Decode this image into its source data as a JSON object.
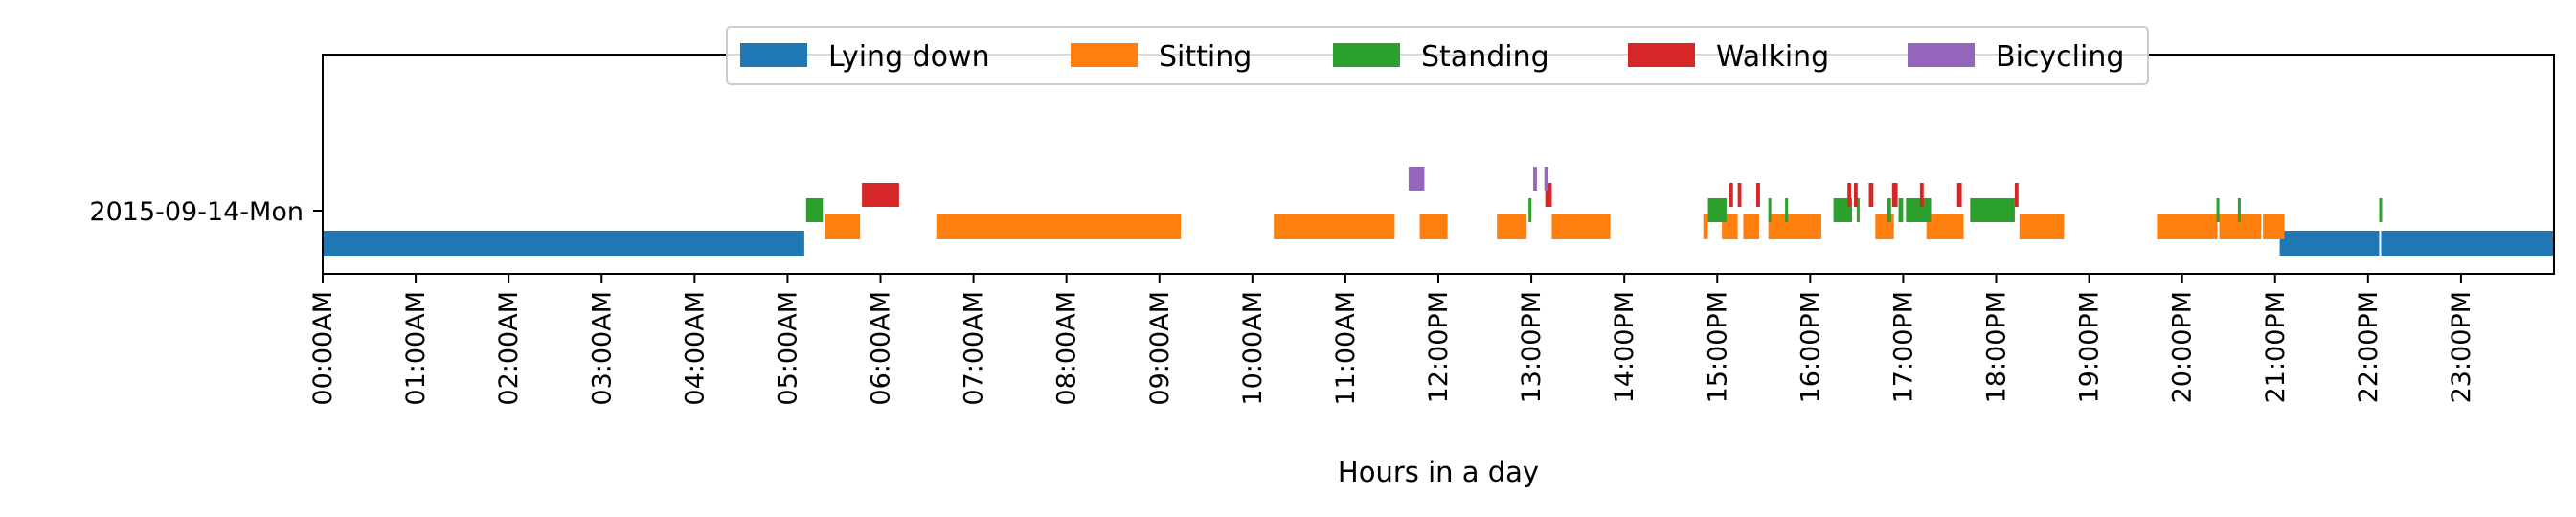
{
  "chart_data": {
    "type": "timeline",
    "title": "",
    "xlabel": "Hours in a day",
    "ylabel": "",
    "xlim": [
      0,
      24
    ],
    "grid": false,
    "legend_placement": "top-center",
    "rows": [
      "2015-09-14-Mon"
    ],
    "x_tick_labels": [
      "00:00AM",
      "01:00AM",
      "02:00AM",
      "03:00AM",
      "04:00AM",
      "05:00AM",
      "06:00AM",
      "07:00AM",
      "08:00AM",
      "09:00AM",
      "10:00AM",
      "11:00AM",
      "12:00PM",
      "13:00PM",
      "14:00PM",
      "15:00PM",
      "16:00PM",
      "17:00PM",
      "18:00PM",
      "19:00PM",
      "20:00PM",
      "21:00PM",
      "22:00PM",
      "23:00PM"
    ],
    "series": [
      {
        "name": "Lying down",
        "color": "#1f77b4",
        "intervals": [
          [
            0.0,
            5.18
          ],
          [
            21.05,
            22.12
          ],
          [
            22.14,
            24.0
          ]
        ]
      },
      {
        "name": "Sitting",
        "color": "#ff7f0e",
        "intervals": [
          [
            5.4,
            5.78
          ],
          [
            6.6,
            9.23
          ],
          [
            10.23,
            11.53
          ],
          [
            11.8,
            12.1
          ],
          [
            12.63,
            12.95
          ],
          [
            13.22,
            13.85
          ],
          [
            14.85,
            14.9
          ],
          [
            15.05,
            15.22
          ],
          [
            15.28,
            15.45
          ],
          [
            15.55,
            16.12
          ],
          [
            16.7,
            16.9
          ],
          [
            17.25,
            17.65
          ],
          [
            18.25,
            18.73
          ],
          [
            19.73,
            20.38
          ],
          [
            20.4,
            20.85
          ],
          [
            20.87,
            21.1
          ]
        ]
      },
      {
        "name": "Standing",
        "color": "#2ca02c",
        "intervals": [
          [
            5.2,
            5.38
          ],
          [
            12.97,
            13.0
          ],
          [
            14.9,
            15.1
          ],
          [
            15.55,
            15.58
          ],
          [
            15.73,
            15.76
          ],
          [
            16.25,
            16.45
          ],
          [
            16.5,
            16.53
          ],
          [
            16.83,
            16.87
          ],
          [
            16.95,
            17.0
          ],
          [
            17.03,
            17.3
          ],
          [
            17.72,
            18.2
          ],
          [
            20.37,
            20.4
          ],
          [
            20.6,
            20.63
          ],
          [
            22.12,
            22.14
          ]
        ]
      },
      {
        "name": "Walking",
        "color": "#d62728",
        "intervals": [
          [
            5.8,
            6.2
          ],
          [
            13.15,
            13.22
          ],
          [
            15.13,
            15.17
          ],
          [
            15.22,
            15.26
          ],
          [
            15.42,
            15.46
          ],
          [
            16.4,
            16.44
          ],
          [
            16.47,
            16.51
          ],
          [
            16.63,
            16.68
          ],
          [
            16.88,
            16.94
          ],
          [
            17.18,
            17.22
          ],
          [
            17.58,
            17.63
          ],
          [
            18.2,
            18.24
          ]
        ]
      },
      {
        "name": "Bicycling",
        "color": "#9467bd",
        "intervals": [
          [
            11.68,
            11.85
          ],
          [
            13.02,
            13.06
          ],
          [
            13.14,
            13.18
          ]
        ]
      }
    ]
  }
}
